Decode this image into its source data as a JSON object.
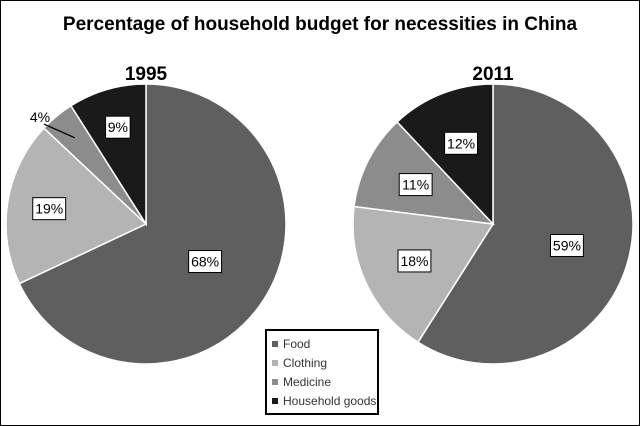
{
  "chart_data": [
    {
      "type": "pie",
      "title": "Percentage of household budget for necessities in China",
      "subtitle": "1995",
      "categories": [
        "Food",
        "Clothing",
        "Medicine",
        "Household goods"
      ],
      "values": [
        68,
        19,
        4,
        9
      ],
      "labels": [
        "68%",
        "19%",
        "4%",
        "9%"
      ],
      "colors": [
        "#5f5f5f",
        "#b4b4b4",
        "#8c8c8c",
        "#1a1a1a"
      ],
      "legend": "bottom-center"
    },
    {
      "type": "pie",
      "title": "Percentage of household budget for necessities in China",
      "subtitle": "2011",
      "categories": [
        "Food",
        "Clothing",
        "Medicine",
        "Household goods"
      ],
      "values": [
        59,
        18,
        11,
        12
      ],
      "labels": [
        "59%",
        "18%",
        "11%",
        "12%"
      ],
      "colors": [
        "#5f5f5f",
        "#b4b4b4",
        "#8c8c8c",
        "#1a1a1a"
      ],
      "legend": "bottom-center"
    }
  ]
}
